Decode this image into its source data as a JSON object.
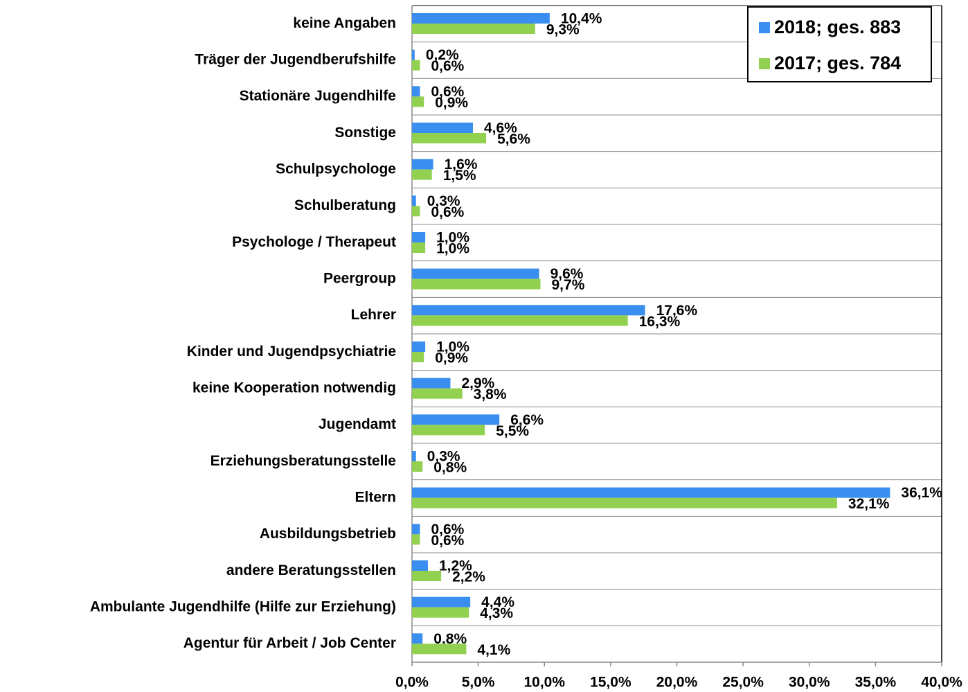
{
  "chart_data": {
    "type": "hbar",
    "categories": [
      "keine Angaben",
      "Träger der Jugendberufshilfe",
      "Stationäre Jugendhilfe",
      "Sonstige",
      "Schulpsychologe",
      "Schulberatung",
      "Psychologe / Therapeut",
      "Peergroup",
      "Lehrer",
      "Kinder und Jugendpsychiatrie",
      "keine Kooperation notwendig",
      "Jugendamt",
      "Erziehungsberatungsstelle",
      "Eltern",
      "Ausbildungsbetrieb",
      "andere Beratungsstellen",
      "Ambulante Jugendhilfe (Hilfe zur Erziehung)",
      "Agentur für Arbeit / Job Center"
    ],
    "series": [
      {
        "name": "2018; ges. 883",
        "color": "#3a8ef0",
        "values": [
          10.4,
          0.2,
          0.6,
          4.6,
          1.6,
          0.3,
          1.0,
          9.6,
          17.6,
          1.0,
          2.9,
          6.6,
          0.3,
          36.1,
          0.6,
          1.2,
          4.4,
          0.8
        ],
        "value_labels": [
          "10,4%",
          "0,2%",
          "0,6%",
          "4,6%",
          "1,6%",
          "0,3%",
          "1,0%",
          "9,6%",
          "17,6%",
          "1,0%",
          "2,9%",
          "6,6%",
          "0,3%",
          "36,1%",
          "0,6%",
          "1,2%",
          "4,4%",
          "0,8%"
        ]
      },
      {
        "name": "2017; ges. 784",
        "color": "#92d050",
        "values": [
          9.3,
          0.6,
          0.9,
          5.6,
          1.5,
          0.6,
          1.0,
          9.7,
          16.3,
          0.9,
          3.8,
          5.5,
          0.8,
          32.1,
          0.6,
          2.2,
          4.3,
          4.1
        ],
        "value_labels": [
          "9,3%",
          "0,6%",
          "0,9%",
          "5,6%",
          "1,5%",
          "0,6%",
          "1,0%",
          "9,7%",
          "16,3%",
          "0,9%",
          "3,8%",
          "5,5%",
          "0,8%",
          "32,1%",
          "0,6%",
          "2,2%",
          "4,3%",
          "4,1%"
        ]
      }
    ],
    "xlim": [
      0,
      40
    ],
    "xticks": [
      {
        "value": 0,
        "label": "0,0%"
      },
      {
        "value": 5,
        "label": "5,0%"
      },
      {
        "value": 10,
        "label": "10,0%"
      },
      {
        "value": 15,
        "label": "15,0%"
      },
      {
        "value": 20,
        "label": "20,0%"
      },
      {
        "value": 25,
        "label": "25,0%"
      },
      {
        "value": 30,
        "label": "30,0%"
      },
      {
        "value": 35,
        "label": "35,0%"
      },
      {
        "value": 40,
        "label": "40,0%"
      }
    ],
    "legend": "top-right"
  }
}
